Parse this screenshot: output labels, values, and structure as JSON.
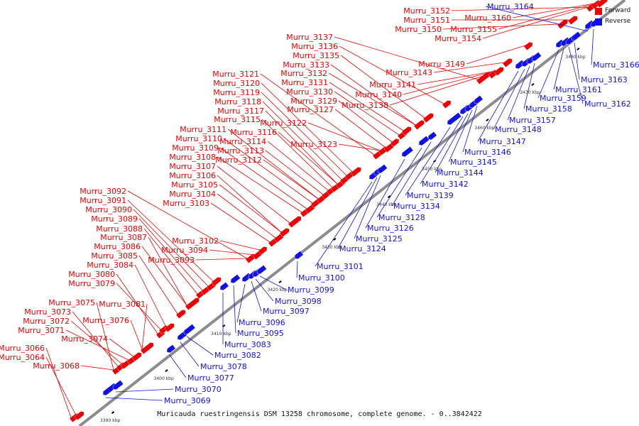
{
  "colors": {
    "forward": "#ee0000",
    "reverse": "#1010e8",
    "backbone": "#8c8c8c"
  },
  "caption": "Muricauda ruestringensis DSM 13258 chromosome, complete genome. - 0..3842422",
  "legend": {
    "forward": "Forward",
    "reverse": "Reverse"
  },
  "ticks": [
    "3390 kbp",
    "3400 kbp",
    "3410 kbp",
    "3420 kbp",
    "3430 kbp",
    "3440 kbp",
    "3450 kbp",
    "3460 kbp",
    "3470 kbp",
    "3480 kbp"
  ],
  "forward_genes": [
    "Murru_3066",
    "Murru_3064",
    "Murru_3068",
    "Murru_3075",
    "Murru_3073",
    "Murru_3072",
    "Murru_3071",
    "Murru_3074",
    "Murru_3076",
    "Murru_3081",
    "Murru_3080",
    "Murru_3079",
    "Murru_3084",
    "Murru_3085",
    "Murru_3086",
    "Murru_3087",
    "Murru_3088",
    "Murru_3089",
    "Murru_3090",
    "Murru_3091",
    "Murru_3092",
    "Murru_3093",
    "Murru_3094",
    "Murru_3102",
    "Murru_3103",
    "Murru_3104",
    "Murru_3105",
    "Murru_3106",
    "Murru_3107",
    "Murru_3108",
    "Murru_3109",
    "Murru_3110",
    "Murru_3111",
    "Murru_3112",
    "Murru_3113",
    "Murru_3114",
    "Murru_3115",
    "Murru_3116",
    "Murru_3117",
    "Murru_3118",
    "Murru_3119",
    "Murru_3120",
    "Murru_3121",
    "Murru_3122",
    "Murru_3123",
    "Murru_3127",
    "Murru_3129",
    "Murru_3130",
    "Murru_3131",
    "Murru_3132",
    "Murru_3133",
    "Murru_3135",
    "Murru_3136",
    "Murru_3137",
    "Murru_3138",
    "Murru_3140",
    "Murru_3141",
    "Murru_3143",
    "Murru_3149",
    "Murru_3150",
    "Murru_3151",
    "Murru_3152",
    "Murru_3154",
    "Murru_3155",
    "Murru_3160"
  ],
  "reverse_genes": [
    "Murru_3069",
    "Murru_3070",
    "Murru_3077",
    "Murru_3078",
    "Murru_3082",
    "Murru_3083",
    "Murru_3095",
    "Murru_3096",
    "Murru_3097",
    "Murru_3098",
    "Murru_3099",
    "Murru_3100",
    "Murru_3101",
    "Murru_3124",
    "Murru_3125",
    "Murru_3126",
    "Murru_3128",
    "Murru_3134",
    "Murru_3139",
    "Murru_3142",
    "Murru_3144",
    "Murru_3145",
    "Murru_3146",
    "Murru_3147",
    "Murru_3148",
    "Murru_3157",
    "Murru_3158",
    "Murru_3159",
    "Murru_3161",
    "Murru_3162",
    "Murru_3163",
    "Murru_3164",
    "Murru_3166"
  ]
}
